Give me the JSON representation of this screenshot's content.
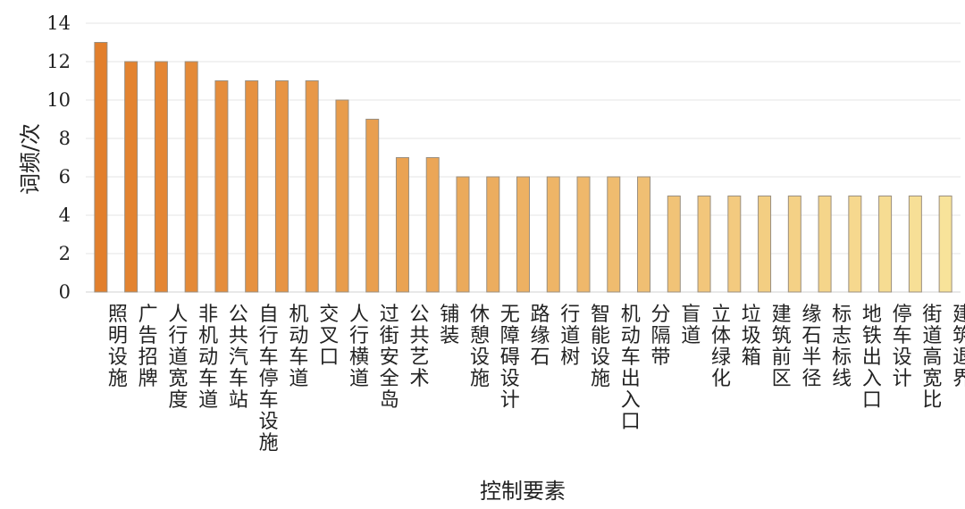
{
  "chart_data": {
    "type": "bar",
    "title": "",
    "xlabel": "控制要素",
    "ylabel": "词频/次",
    "ylim": [
      0,
      14
    ],
    "yticks": [
      0,
      2,
      4,
      6,
      8,
      10,
      12,
      14
    ],
    "grid": true,
    "legend": "none",
    "colors": {
      "start": "#E27F2C",
      "end": "#F8E39A",
      "edge": "#9a8f80"
    },
    "categories": [
      "照明设施",
      "广告招牌",
      "人行道宽度",
      "非机动车道",
      "公共汽车站",
      "自行车停车设施",
      "机动车道",
      "交叉口",
      "人行横道",
      "过街安全岛",
      "公共艺术",
      "铺装",
      "休憩设施",
      "无障碍设计",
      "路缘石",
      "行道树",
      "智能设施",
      "机动车出入口",
      "分隔带",
      "盲道",
      "立体绿化",
      "垃圾箱",
      "建筑前区",
      "缘石半径",
      "标志标线",
      "地铁出入口",
      "停车设计",
      "街道高宽比",
      "建筑退界"
    ],
    "values": [
      13,
      12,
      12,
      12,
      11,
      11,
      11,
      11,
      10,
      9,
      7,
      7,
      6,
      6,
      6,
      6,
      6,
      6,
      6,
      5,
      5,
      5,
      5,
      5,
      5,
      5,
      5,
      5,
      5
    ]
  }
}
